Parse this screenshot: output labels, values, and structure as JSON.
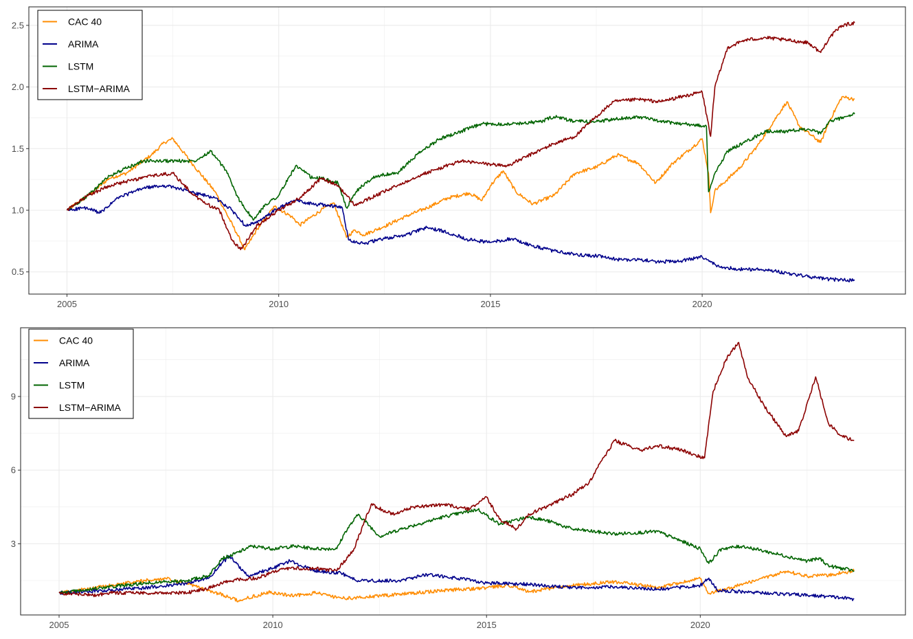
{
  "chart_data": [
    {
      "type": "line",
      "title": "",
      "xlabel": "",
      "ylabel": "",
      "xlim": [
        2004.1,
        2024.8
      ],
      "ylim": [
        0.32,
        2.65
      ],
      "x_ticks": [
        "2005",
        "2010",
        "2015",
        "2020"
      ],
      "y_ticks": [
        "0.5",
        "1.0",
        "1.5",
        "2.0",
        "2.5"
      ],
      "grid": true,
      "legend_position": "top-left",
      "series": [
        {
          "name": "CAC 40",
          "color": "#FF8C00",
          "x": [
            2005.0,
            2005.5,
            2006.0,
            2006.4,
            2007.0,
            2007.3,
            2007.5,
            2008.0,
            2008.5,
            2009.0,
            2009.2,
            2009.5,
            2009.9,
            2010.3,
            2010.5,
            2011.0,
            2011.3,
            2011.6,
            2011.8,
            2012.0,
            2012.5,
            2013.0,
            2013.5,
            2014.0,
            2014.5,
            2014.8,
            2015.0,
            2015.3,
            2015.6,
            2016.0,
            2016.5,
            2017.0,
            2017.5,
            2018.0,
            2018.5,
            2018.9,
            2019.3,
            2019.8,
            2020.0,
            2020.15,
            2020.2,
            2020.3,
            2020.5,
            2020.9,
            2021.3,
            2021.8,
            2022.0,
            2022.3,
            2022.8,
            2023.0,
            2023.3,
            2023.6
          ],
          "y": [
            1.0,
            1.12,
            1.26,
            1.3,
            1.45,
            1.55,
            1.58,
            1.36,
            1.15,
            0.82,
            0.68,
            0.85,
            1.03,
            0.95,
            0.88,
            1.0,
            1.06,
            0.78,
            0.84,
            0.8,
            0.87,
            0.95,
            1.02,
            1.1,
            1.14,
            1.08,
            1.2,
            1.32,
            1.15,
            1.05,
            1.12,
            1.3,
            1.35,
            1.45,
            1.38,
            1.22,
            1.38,
            1.52,
            1.58,
            1.3,
            0.98,
            1.16,
            1.22,
            1.35,
            1.52,
            1.78,
            1.88,
            1.68,
            1.55,
            1.72,
            1.92,
            1.9
          ]
        },
        {
          "name": "ARIMA",
          "color": "#00008B",
          "x": [
            2005.0,
            2005.4,
            2005.8,
            2006.2,
            2006.8,
            2007.3,
            2007.6,
            2008.0,
            2008.5,
            2008.9,
            2009.2,
            2009.5,
            2010.0,
            2010.4,
            2010.8,
            2011.2,
            2011.5,
            2011.65,
            2012.0,
            2012.5,
            2013.0,
            2013.5,
            2014.0,
            2014.5,
            2015.0,
            2015.5,
            2016.0,
            2016.5,
            2017.0,
            2017.5,
            2018.0,
            2018.5,
            2019.0,
            2019.5,
            2020.0,
            2020.2,
            2020.4,
            2021.0,
            2021.5,
            2022.0,
            2022.5,
            2023.0,
            2023.6
          ],
          "y": [
            1.0,
            1.02,
            0.98,
            1.1,
            1.18,
            1.2,
            1.18,
            1.14,
            1.1,
            1.0,
            0.88,
            0.9,
            1.02,
            1.08,
            1.05,
            1.04,
            1.02,
            0.76,
            0.73,
            0.77,
            0.8,
            0.86,
            0.82,
            0.76,
            0.74,
            0.77,
            0.71,
            0.67,
            0.64,
            0.63,
            0.6,
            0.6,
            0.58,
            0.59,
            0.62,
            0.58,
            0.54,
            0.52,
            0.52,
            0.49,
            0.46,
            0.44,
            0.43
          ]
        },
        {
          "name": "LSTM",
          "color": "#006400",
          "x": [
            2005.0,
            2005.5,
            2006.0,
            2006.4,
            2006.8,
            2008.0,
            2008.4,
            2008.8,
            2009.0,
            2009.4,
            2009.7,
            2010.0,
            2010.4,
            2010.8,
            2011.0,
            2011.4,
            2011.6,
            2011.9,
            2012.3,
            2012.8,
            2013.3,
            2013.8,
            2014.3,
            2014.8,
            2015.5,
            2016.2,
            2016.5,
            2017.0,
            2017.5,
            2018.0,
            2018.5,
            2019.0,
            2019.6,
            2020.1,
            2020.15,
            2020.3,
            2020.6,
            2021.0,
            2021.5,
            2022.0,
            2022.5,
            2022.8,
            2023.0,
            2023.6
          ],
          "y": [
            1.0,
            1.12,
            1.28,
            1.34,
            1.4,
            1.4,
            1.48,
            1.3,
            1.12,
            0.92,
            1.05,
            1.12,
            1.36,
            1.26,
            1.26,
            1.22,
            1.02,
            1.18,
            1.28,
            1.3,
            1.46,
            1.58,
            1.64,
            1.7,
            1.7,
            1.72,
            1.76,
            1.72,
            1.72,
            1.74,
            1.76,
            1.72,
            1.7,
            1.68,
            1.15,
            1.3,
            1.48,
            1.55,
            1.64,
            1.64,
            1.66,
            1.62,
            1.72,
            1.78
          ]
        },
        {
          "name": "LSTM−ARIMA",
          "color": "#8B0000",
          "x": [
            2005.0,
            2005.5,
            2006.0,
            2006.5,
            2007.0,
            2007.5,
            2008.0,
            2008.3,
            2008.6,
            2008.9,
            2009.1,
            2009.5,
            2010.0,
            2010.5,
            2011.0,
            2011.4,
            2011.8,
            2012.3,
            2012.8,
            2013.3,
            2013.8,
            2014.3,
            2014.8,
            2015.4,
            2016.0,
            2016.5,
            2017.0,
            2017.5,
            2017.9,
            2018.5,
            2019.0,
            2019.5,
            2020.0,
            2020.2,
            2020.3,
            2020.6,
            2021.0,
            2021.5,
            2022.0,
            2022.5,
            2022.8,
            2023.0,
            2023.3,
            2023.6
          ],
          "y": [
            1.0,
            1.12,
            1.2,
            1.24,
            1.28,
            1.3,
            1.12,
            1.05,
            1.0,
            0.76,
            0.68,
            0.88,
            1.0,
            1.1,
            1.26,
            1.2,
            1.04,
            1.12,
            1.2,
            1.28,
            1.34,
            1.4,
            1.38,
            1.36,
            1.46,
            1.54,
            1.6,
            1.76,
            1.88,
            1.9,
            1.88,
            1.92,
            1.96,
            1.6,
            2.0,
            2.32,
            2.38,
            2.4,
            2.38,
            2.36,
            2.28,
            2.4,
            2.5,
            2.52
          ]
        }
      ]
    },
    {
      "type": "line",
      "title": "",
      "xlabel": "",
      "ylabel": "",
      "xlim": [
        2004.1,
        2024.8
      ],
      "ylim": [
        0.1,
        11.8
      ],
      "x_ticks": [
        "2005",
        "2010",
        "2015",
        "2020"
      ],
      "y_ticks": [
        "3",
        "6",
        "9"
      ],
      "grid": true,
      "legend_position": "top-left",
      "series": [
        {
          "name": "CAC 40",
          "color": "#FF8C00",
          "x": [
            2005.0,
            2006.0,
            2007.0,
            2007.5,
            2008.0,
            2008.5,
            2009.0,
            2009.2,
            2009.9,
            2010.5,
            2011.0,
            2011.6,
            2012.0,
            2013.0,
            2014.0,
            2015.0,
            2015.5,
            2016.0,
            2017.0,
            2018.0,
            2019.0,
            2020.0,
            2020.2,
            2021.0,
            2022.0,
            2022.5,
            2023.0,
            2023.6
          ],
          "y": [
            1.0,
            1.26,
            1.5,
            1.58,
            1.36,
            1.1,
            0.82,
            0.68,
            1.03,
            0.88,
            1.0,
            0.78,
            0.8,
            0.95,
            1.1,
            1.2,
            1.32,
            1.05,
            1.3,
            1.45,
            1.22,
            1.58,
            0.98,
            1.35,
            1.88,
            1.68,
            1.72,
            1.9
          ]
        },
        {
          "name": "ARIMA",
          "color": "#00008B",
          "x": [
            2005.0,
            2006.0,
            2007.0,
            2008.0,
            2008.5,
            2008.8,
            2009.0,
            2009.4,
            2010.0,
            2010.4,
            2011.0,
            2011.6,
            2012.0,
            2013.0,
            2013.6,
            2014.5,
            2015.0,
            2016.0,
            2017.0,
            2018.0,
            2019.0,
            2020.0,
            2020.2,
            2020.4,
            2021.0,
            2022.0,
            2023.0,
            2023.6
          ],
          "y": [
            1.0,
            1.1,
            1.2,
            1.4,
            1.6,
            2.2,
            2.5,
            1.7,
            2.0,
            2.3,
            1.9,
            1.8,
            1.5,
            1.5,
            1.75,
            1.55,
            1.4,
            1.35,
            1.2,
            1.25,
            1.15,
            1.3,
            1.6,
            1.1,
            1.05,
            0.95,
            0.85,
            0.75
          ]
        },
        {
          "name": "LSTM",
          "color": "#006400",
          "x": [
            2005.0,
            2006.0,
            2007.0,
            2008.0,
            2008.5,
            2008.8,
            2009.0,
            2009.5,
            2010.0,
            2010.5,
            2011.0,
            2011.5,
            2011.7,
            2012.0,
            2012.5,
            2013.0,
            2014.0,
            2014.8,
            2015.3,
            2016.0,
            2016.5,
            2017.0,
            2018.0,
            2019.0,
            2020.0,
            2020.2,
            2020.5,
            2021.0,
            2022.0,
            2022.5,
            2022.8,
            2023.0,
            2023.6
          ],
          "y": [
            1.0,
            1.2,
            1.4,
            1.5,
            1.7,
            2.4,
            2.5,
            2.9,
            2.8,
            2.9,
            2.8,
            2.8,
            3.5,
            4.2,
            3.3,
            3.6,
            4.1,
            4.4,
            3.8,
            4.1,
            3.9,
            3.6,
            3.4,
            3.5,
            2.8,
            2.2,
            2.8,
            2.9,
            2.5,
            2.3,
            2.4,
            2.1,
            1.9
          ]
        },
        {
          "name": "LSTM−ARIMA",
          "color": "#8B0000",
          "x": [
            2005.0,
            2005.8,
            2006.2,
            2007.0,
            2008.0,
            2008.5,
            2009.0,
            2009.6,
            2010.3,
            2011.0,
            2011.5,
            2011.9,
            2012.3,
            2012.8,
            2013.3,
            2014.0,
            2014.6,
            2015.0,
            2015.3,
            2015.7,
            2016.0,
            2016.5,
            2017.0,
            2017.4,
            2017.7,
            2018.0,
            2018.6,
            2019.0,
            2019.6,
            2019.9,
            2020.1,
            2020.3,
            2020.6,
            2020.9,
            2021.1,
            2021.5,
            2022.0,
            2022.3,
            2022.7,
            2023.0,
            2023.3,
            2023.6
          ],
          "y": [
            1.0,
            0.9,
            1.0,
            1.0,
            1.0,
            1.2,
            1.5,
            1.6,
            2.0,
            2.0,
            1.9,
            2.8,
            4.6,
            4.2,
            4.5,
            4.6,
            4.4,
            4.9,
            4.0,
            3.6,
            4.2,
            4.6,
            5.0,
            5.5,
            6.4,
            7.2,
            6.8,
            7.0,
            6.8,
            6.6,
            6.5,
            9.2,
            10.5,
            11.2,
            9.8,
            8.6,
            7.4,
            7.6,
            9.8,
            7.9,
            7.4,
            7.2
          ]
        }
      ]
    }
  ]
}
